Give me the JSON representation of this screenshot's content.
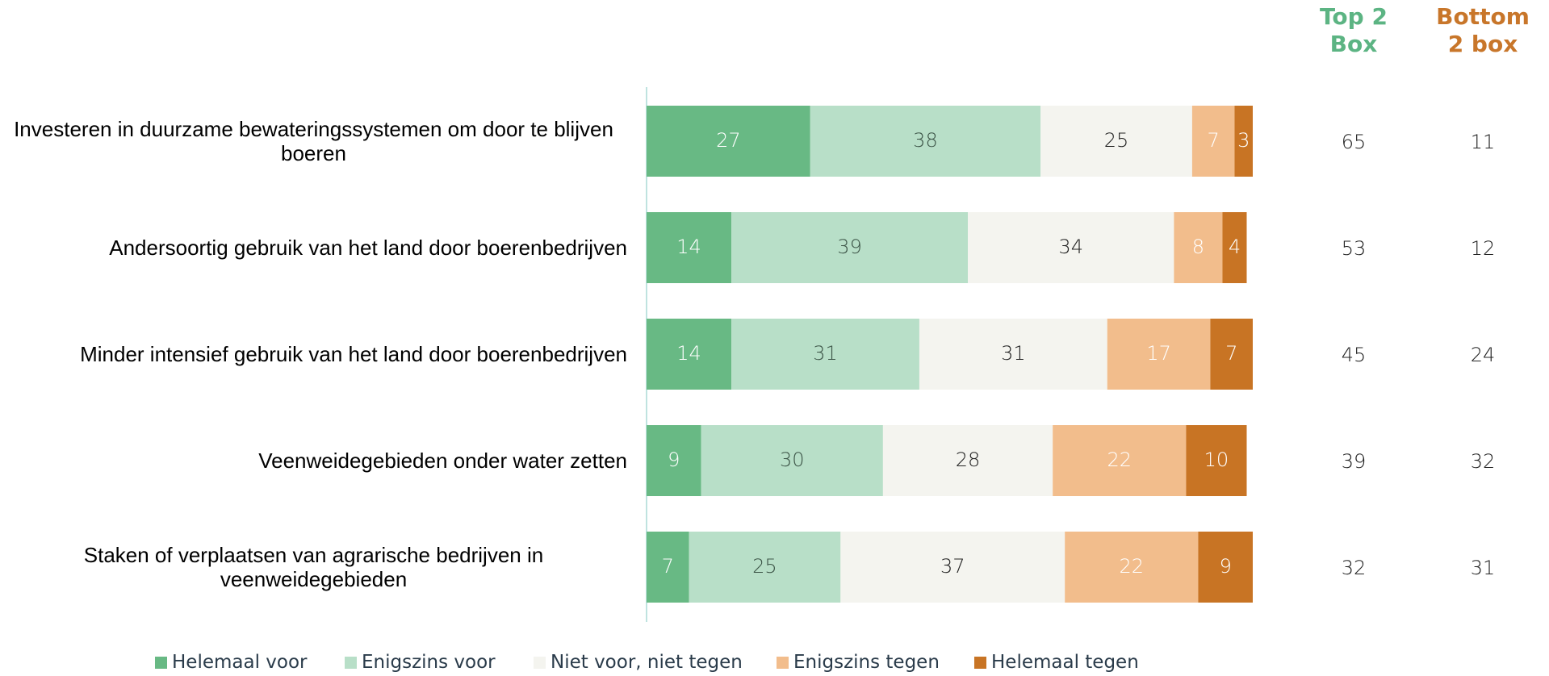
{
  "chart_data": {
    "type": "bar",
    "orientation": "horizontal",
    "stacked": true,
    "categories": [
      "Investeren in duurzame bewateringssystemen om door te blijven boeren",
      "Andersoortig gebruik van het land door boerenbedrijven",
      "Minder intensief gebruik van het land door boerenbedrijven",
      "Veenweidegebieden onder water zetten",
      "Staken of verplaatsen van agrarische bedrijven in veenweidegebieden"
    ],
    "series": [
      {
        "name": "Helemaal voor",
        "color": "#68b984",
        "values": [
          27,
          14,
          14,
          9,
          7
        ]
      },
      {
        "name": "Enigszins voor",
        "color": "#b8dfc8",
        "values": [
          38,
          39,
          31,
          30,
          25
        ]
      },
      {
        "name": "Niet voor, niet tegen",
        "color": "#f4f4ef",
        "values": [
          25,
          34,
          31,
          28,
          37
        ]
      },
      {
        "name": "Enigszins tegen",
        "color": "#f2bd8c",
        "values": [
          7,
          8,
          17,
          22,
          22
        ]
      },
      {
        "name": "Helemaal tegen",
        "color": "#c87424",
        "values": [
          3,
          4,
          7,
          10,
          9
        ]
      }
    ],
    "xlim": [
      0,
      100
    ],
    "legend": "bottom",
    "summary_columns": [
      {
        "label": "Top 2 Box",
        "color": "#5cb483",
        "values": [
          65,
          53,
          45,
          39,
          32
        ]
      },
      {
        "label": "Bottom 2 box",
        "color": "#c8762a",
        "values": [
          11,
          12,
          24,
          32,
          31
        ]
      }
    ]
  }
}
